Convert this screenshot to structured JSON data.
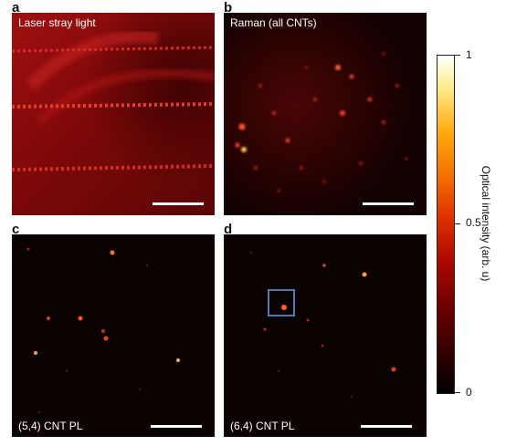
{
  "panels": {
    "a": {
      "letter": "a",
      "caption": "Laser stray light"
    },
    "b": {
      "letter": "b",
      "caption": "Raman (all CNTs)"
    },
    "c": {
      "letter": "c",
      "caption": "(5,4) CNT PL"
    },
    "d": {
      "letter": "d",
      "caption": "(6,4) CNT PL"
    }
  },
  "colorbar": {
    "title": "Optical intensity (arb. u)",
    "ticks": [
      "1",
      "0.5",
      "0"
    ],
    "colors": {
      "low": "#000000",
      "mid": "#e03000",
      "high": "#ffffff"
    }
  },
  "highlight_color": "#4a78b8"
}
